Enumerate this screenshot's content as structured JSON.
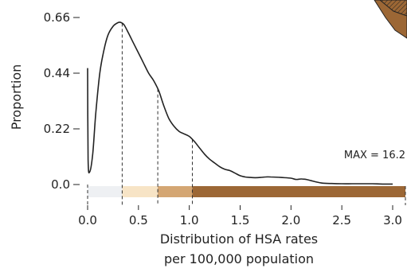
{
  "chart_data": {
    "type": "line",
    "title": "",
    "xlabel": "Distribution of HSA rates",
    "xlabel_line2": "per 100,000 population",
    "ylabel": "Proportion",
    "xlim": [
      0,
      3.0
    ],
    "ylim": [
      0,
      0.66
    ],
    "x_ticks": [
      0.0,
      0.5,
      1.0,
      1.5,
      2.0,
      2.5,
      3.0
    ],
    "x_tick_labels": [
      "0.0",
      "0.5",
      "1.0",
      "1.5",
      "2.0",
      "2.5",
      "3.0"
    ],
    "y_ticks": [
      0.0,
      0.22,
      0.44,
      0.66
    ],
    "y_tick_labels": [
      "0.0",
      "0.22",
      "0.44",
      "0.66"
    ],
    "series": [
      {
        "x": [
          0.0,
          0.005,
          0.02,
          0.05,
          0.08,
          0.12,
          0.16,
          0.2,
          0.25,
          0.3,
          0.33,
          0.36,
          0.4,
          0.45,
          0.5,
          0.55,
          0.6,
          0.65,
          0.7,
          0.75,
          0.8,
          0.85,
          0.9,
          0.95,
          1.0,
          1.05,
          1.1,
          1.15,
          1.2,
          1.25,
          1.3,
          1.35,
          1.4,
          1.45,
          1.5,
          1.55,
          1.6,
          1.65,
          1.7,
          1.75,
          1.8,
          1.9,
          2.0,
          2.05,
          2.1,
          2.15,
          2.2,
          2.3,
          2.4,
          2.5,
          2.6,
          2.7,
          2.8,
          2.9,
          3.0
        ],
        "y": [
          0.46,
          0.1,
          0.05,
          0.12,
          0.28,
          0.44,
          0.53,
          0.59,
          0.625,
          0.64,
          0.64,
          0.63,
          0.6,
          0.56,
          0.52,
          0.48,
          0.44,
          0.41,
          0.37,
          0.31,
          0.26,
          0.23,
          0.21,
          0.2,
          0.19,
          0.17,
          0.145,
          0.12,
          0.1,
          0.085,
          0.07,
          0.06,
          0.055,
          0.045,
          0.035,
          0.03,
          0.028,
          0.027,
          0.028,
          0.03,
          0.03,
          0.028,
          0.025,
          0.02,
          0.022,
          0.02,
          0.015,
          0.006,
          0.004,
          0.003,
          0.003,
          0.003,
          0.003,
          0.002,
          0.002
        ]
      }
    ],
    "breaks": [
      0.0,
      0.34,
      0.69,
      1.03,
      3.0
    ],
    "break_colors": [
      "#eef0f3",
      "#f7e4c6",
      "#d4a673",
      "#9c6735"
    ],
    "annotation": "MAX = 16.2"
  },
  "colors": {
    "line": "#222222",
    "dash": "#333333"
  }
}
